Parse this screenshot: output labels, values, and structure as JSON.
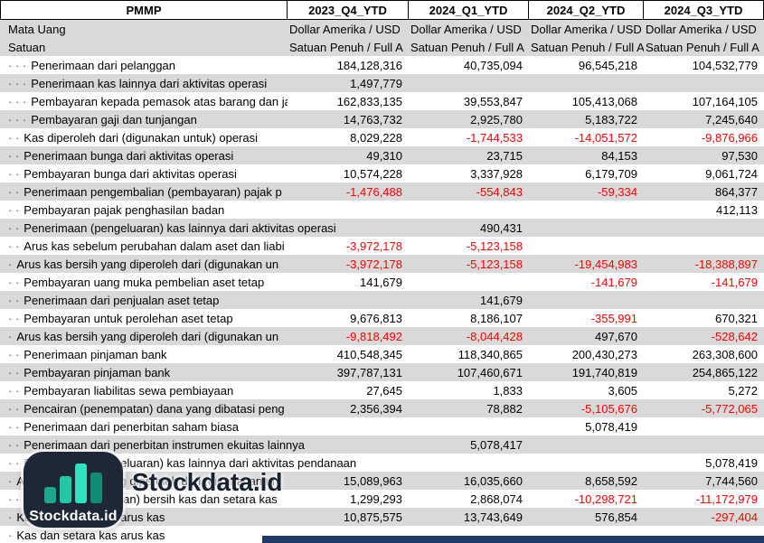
{
  "header": {
    "ticker": "PMMP",
    "columns": [
      "2023_Q4_YTD",
      "2024_Q1_YTD",
      "2024_Q2_YTD",
      "2024_Q3_YTD"
    ]
  },
  "info_rows": [
    {
      "label": "Mata Uang",
      "values": [
        "Dollar Amerika / USD",
        "Dollar Amerika / USD",
        "Dollar Amerika / USD",
        "Dollar Amerika / USD"
      ]
    },
    {
      "label": "Satuan",
      "values": [
        "Satuan Penuh / Full A",
        "Satuan Penuh / Full A",
        "Satuan Penuh / Full A",
        "Satuan Penuh / Full A"
      ]
    }
  ],
  "rows": [
    {
      "dots": "· · ·",
      "label": "Penerimaan dari pelanggan",
      "values": [
        "184,128,316",
        "40,735,094",
        "96,545,218",
        "104,532,779"
      ]
    },
    {
      "dots": "· · ·",
      "label": "Penerimaan kas lainnya dari aktivitas operasi",
      "values": [
        "1,497,779",
        "",
        "",
        ""
      ]
    },
    {
      "dots": "· · ·",
      "label": "Pembayaran kepada pemasok atas barang dan ja",
      "values": [
        "162,833,135",
        "39,553,847",
        "105,413,068",
        "107,164,105"
      ]
    },
    {
      "dots": "· · ·",
      "label": "Pembayaran gaji dan tunjangan",
      "values": [
        "14,763,732",
        "2,925,780",
        "5,183,722",
        "7,245,640"
      ]
    },
    {
      "dots": "· ·",
      "label": "Kas diperoleh dari (digunakan untuk) operasi",
      "values": [
        "8,029,228",
        "-1,744,533",
        "-14,051,572",
        "-9,876,966"
      ]
    },
    {
      "dots": "· ·",
      "label": "Penerimaan bunga dari aktivitas operasi",
      "values": [
        "49,310",
        "23,715",
        "84,153",
        "97,530"
      ]
    },
    {
      "dots": "· ·",
      "label": "Pembayaran bunga dari aktivitas operasi",
      "values": [
        "10,574,228",
        "3,337,928",
        "6,179,709",
        "9,061,724"
      ]
    },
    {
      "dots": "· ·",
      "label": "Penerimaan pengembalian (pembayaran) pajak p",
      "values": [
        "-1,476,488",
        "-554,843",
        "-59,334",
        "864,377"
      ]
    },
    {
      "dots": "· ·",
      "label": "Pembayaran pajak penghasilan badan",
      "values": [
        "",
        "",
        "",
        "412,113"
      ]
    },
    {
      "dots": "· ·",
      "label": "Penerimaan (pengeluaran) kas lainnya dari aktivitas operasi",
      "values": [
        "",
        "490,431",
        "",
        ""
      ],
      "spill": true
    },
    {
      "dots": "· ·",
      "label": "Arus kas sebelum perubahan dalam aset dan liabi",
      "values": [
        "-3,972,178",
        "-5,123,158",
        "",
        ""
      ]
    },
    {
      "dots": "·",
      "label": "Arus kas bersih yang diperoleh dari (digunakan un",
      "values": [
        "-3,972,178",
        "-5,123,158",
        "-19,454,983",
        "-18,388,897"
      ]
    },
    {
      "dots": "· ·",
      "label": "Pembayaran uang muka pembelian aset tetap",
      "values": [
        "141,679",
        "",
        "-141,679",
        "-141,679"
      ]
    },
    {
      "dots": "· ·",
      "label": "Penerimaan dari penjualan aset tetap",
      "values": [
        "",
        "141,679",
        "",
        ""
      ]
    },
    {
      "dots": "· ·",
      "label": "Pembayaran untuk perolehan aset tetap",
      "values": [
        "9,676,813",
        "8,186,107",
        "-355,991",
        "670,321"
      ]
    },
    {
      "dots": "·",
      "label": "Arus kas bersih yang diperoleh dari (digunakan un",
      "values": [
        "-9,818,492",
        "-8,044,428",
        "497,670",
        "-528,642"
      ]
    },
    {
      "dots": "· ·",
      "label": "Penerimaan pinjaman bank",
      "values": [
        "410,548,345",
        "118,340,865",
        "200,430,273",
        "263,308,600"
      ]
    },
    {
      "dots": "· ·",
      "label": "Pembayaran pinjaman bank",
      "values": [
        "397,787,131",
        "107,460,671",
        "191,740,819",
        "254,865,122"
      ]
    },
    {
      "dots": "· ·",
      "label": "Pembayaran liabilitas sewa pembiayaan",
      "values": [
        "27,645",
        "1,833",
        "3,605",
        "5,272"
      ]
    },
    {
      "dots": "· ·",
      "label": "Pencairan (penempatan) dana yang dibatasi peng",
      "values": [
        "2,356,394",
        "78,882",
        "-5,105,676",
        "-5,772,065"
      ]
    },
    {
      "dots": "· ·",
      "label": "Penerimaan dari penerbitan saham biasa",
      "values": [
        "",
        "",
        "5,078,419",
        ""
      ]
    },
    {
      "dots": "· ·",
      "label": "Penerimaan dari penerbitan instrumen ekuitas lainnya",
      "values": [
        "",
        "5,078,417",
        "",
        ""
      ],
      "spill": true
    },
    {
      "dots": "· ·",
      "label": "Penerimaan (pengeluaran) kas lainnya dari aktivitas pendanaan",
      "values": [
        "",
        "",
        "",
        "5,078,419"
      ],
      "spill": true
    },
    {
      "dots": "·",
      "label": "Arus kas bersih yang diperoleh dari (digunakan un",
      "values": [
        "15,089,963",
        "16,035,660",
        "8,658,592",
        "7,744,560"
      ]
    },
    {
      "dots": "· ·",
      "label": "Kenaikan (penurunan) bersih kas dan setara kas",
      "values": [
        "1,299,293",
        "2,868,074",
        "-10,298,721",
        "-11,172,979"
      ]
    },
    {
      "dots": "·",
      "label": "Kas dan setara kas arus kas",
      "values": [
        "10,875,575",
        "13,743,649",
        "576,854",
        "-297,404"
      ]
    },
    {
      "dots": "·",
      "label": "Kas dan setara kas arus kas",
      "values": [
        "",
        "",
        "",
        ""
      ]
    }
  ],
  "watermark": {
    "brand": "Stockdata.id",
    "tile_label": "Stockdata.id"
  },
  "colors": {
    "row_alt": "#D9D9D9",
    "negative": "#FF0000",
    "tile_bg": "#1D2736",
    "bar_teal": "#20C9A6",
    "bottom_strip": "#1F3864"
  }
}
